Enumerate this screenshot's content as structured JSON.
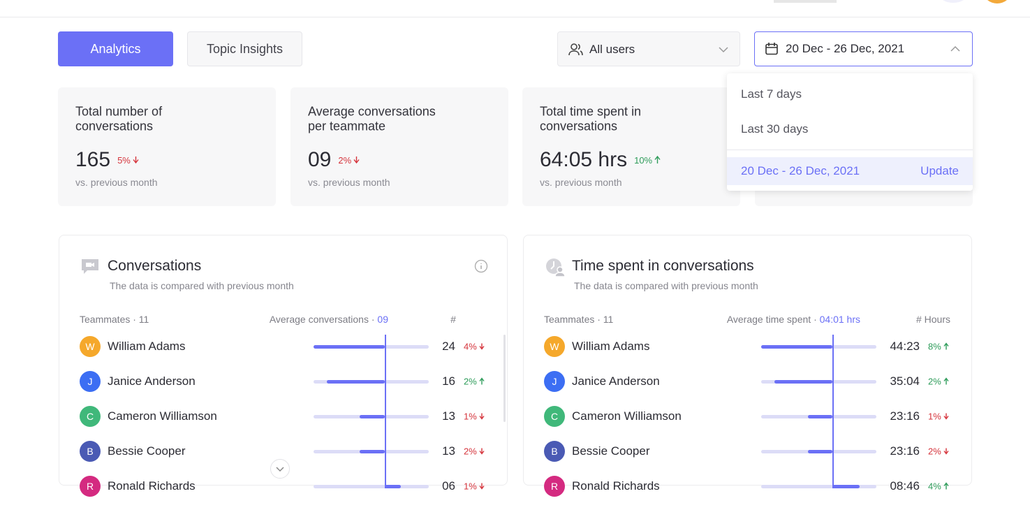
{
  "tabs": [
    "Analytics",
    "Topic Insights"
  ],
  "filters": {
    "users": "All users",
    "date_range": "20 Dec - 26 Dec,  2021"
  },
  "date_menu": {
    "options": [
      "Last 7 days",
      "Last 30 days"
    ],
    "selected": "20 Dec - 26 Dec,  2021",
    "action": "Update"
  },
  "stats": [
    {
      "title_lines": [
        "Total number of",
        "conversations"
      ],
      "value": "165",
      "change": "5%",
      "trend": "down",
      "caption": "vs. previous month"
    },
    {
      "title_lines": [
        "Average conversations",
        "per teammate"
      ],
      "value": "09",
      "change": "2%",
      "trend": "down",
      "caption": "vs. previous month"
    },
    {
      "title_lines": [
        "Total time spent in",
        "conversations"
      ],
      "value": "64:05 hrs",
      "change": "10%",
      "trend": "up",
      "caption": "vs. previous month"
    }
  ],
  "panels": [
    {
      "title": "Conversations",
      "subtitle": "The data is compared with previous month",
      "columns": {
        "teammates": "Teammates · 11",
        "average_label": "Average conversations · ",
        "average_value": "09",
        "metric": "#"
      },
      "rows": [
        {
          "initial": "W",
          "name": "William Adams",
          "color": "#f5a82b",
          "value": "24",
          "change": "4%",
          "trend": "down"
        },
        {
          "initial": "J",
          "name": "Janice Anderson",
          "color": "#3c6ef3",
          "value": "16",
          "change": "2%",
          "trend": "up"
        },
        {
          "initial": "C",
          "name": "Cameron Williamson",
          "color": "#40b87a",
          "value": "13",
          "change": "1%",
          "trend": "down"
        },
        {
          "initial": "B",
          "name": "Bessie Cooper",
          "color": "#4a5ab4",
          "value": "13",
          "change": "2%",
          "trend": "down"
        },
        {
          "initial": "R",
          "name": "Ronald Richards",
          "color": "#d42a80",
          "value": "06",
          "change": "1%",
          "trend": "down"
        }
      ]
    },
    {
      "title": "Time spent in conversations",
      "subtitle": "The data is compared with previous month",
      "columns": {
        "teammates": "Teammates · 11",
        "average_label": "Average time spent · ",
        "average_value": "04:01 hrs",
        "metric": "# Hours"
      },
      "rows": [
        {
          "initial": "W",
          "name": "William Adams",
          "color": "#f5a82b",
          "value": "44:23",
          "change": "8%",
          "trend": "up"
        },
        {
          "initial": "J",
          "name": "Janice Anderson",
          "color": "#3c6ef3",
          "value": "35:04",
          "change": "2%",
          "trend": "up"
        },
        {
          "initial": "C",
          "name": "Cameron Williamson",
          "color": "#40b87a",
          "value": "23:16",
          "change": "1%",
          "trend": "down"
        },
        {
          "initial": "B",
          "name": "Bessie Cooper",
          "color": "#4a5ab4",
          "value": "23:16",
          "change": "2%",
          "trend": "down"
        },
        {
          "initial": "R",
          "name": "Ronald Richards",
          "color": "#d42a80",
          "value": "08:46",
          "change": "4%",
          "trend": "up"
        }
      ]
    }
  ]
}
